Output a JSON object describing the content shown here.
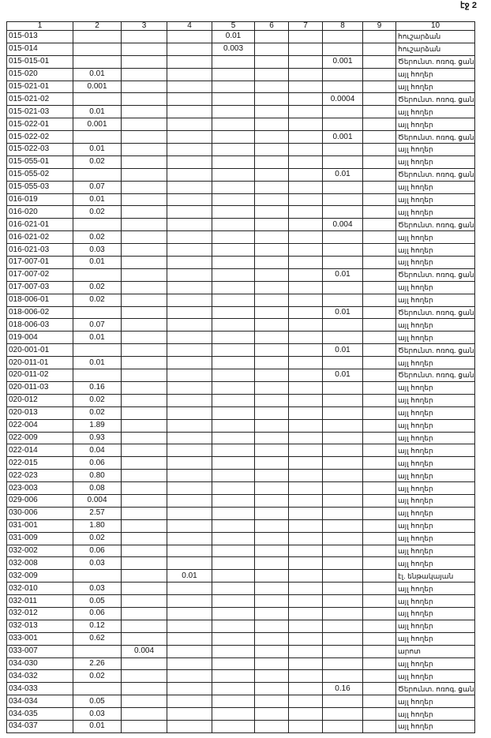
{
  "page": {
    "label": "էջ 2"
  },
  "table": {
    "header": [
      "1",
      "2",
      "3",
      "4",
      "5",
      "6",
      "7",
      "8",
      "9",
      "10"
    ],
    "rows": [
      [
        "015-013",
        null,
        null,
        null,
        "0.01",
        null,
        null,
        null,
        null,
        "հուշարձան"
      ],
      [
        "015-014",
        null,
        null,
        null,
        "0.003",
        null,
        null,
        null,
        null,
        "հուշարձան"
      ],
      [
        "015-015-01",
        null,
        null,
        null,
        null,
        null,
        null,
        "0.001",
        null,
        "Ծերունտ. ոռոգ. ցանք"
      ],
      [
        "015-020",
        "0.01",
        null,
        null,
        null,
        null,
        null,
        null,
        null,
        "այլ հողեր"
      ],
      [
        "015-021-01",
        "0.001",
        null,
        null,
        null,
        null,
        null,
        null,
        null,
        "այլ հողեր"
      ],
      [
        "015-021-02",
        null,
        null,
        null,
        null,
        null,
        null,
        "0.0004",
        null,
        "Ծերունտ. ոռոգ. ցանք"
      ],
      [
        "015-021-03",
        "0.01",
        null,
        null,
        null,
        null,
        null,
        null,
        null,
        "այլ հողեր"
      ],
      [
        "015-022-01",
        "0.001",
        null,
        null,
        null,
        null,
        null,
        null,
        null,
        "այլ հողեր"
      ],
      [
        "015-022-02",
        null,
        null,
        null,
        null,
        null,
        null,
        "0.001",
        null,
        "Ծերունտ. ոռոգ. ցանք"
      ],
      [
        "015-022-03",
        "0.01",
        null,
        null,
        null,
        null,
        null,
        null,
        null,
        "այլ հողեր"
      ],
      [
        "015-055-01",
        "0.02",
        null,
        null,
        null,
        null,
        null,
        null,
        null,
        "այլ հողեր"
      ],
      [
        "015-055-02",
        null,
        null,
        null,
        null,
        null,
        null,
        "0.01",
        null,
        "Ծերունտ. ոռոգ. ցանք"
      ],
      [
        "015-055-03",
        "0.07",
        null,
        null,
        null,
        null,
        null,
        null,
        null,
        "այլ հողեր"
      ],
      [
        "016-019",
        "0.01",
        null,
        null,
        null,
        null,
        null,
        null,
        null,
        "այլ հողեր"
      ],
      [
        "016-020",
        "0.02",
        null,
        null,
        null,
        null,
        null,
        null,
        null,
        "այլ հողեր"
      ],
      [
        "016-021-01",
        null,
        null,
        null,
        null,
        null,
        null,
        "0.004",
        null,
        "Ծերունտ. ոռոգ. ցանք"
      ],
      [
        "016-021-02",
        "0.02",
        null,
        null,
        null,
        null,
        null,
        null,
        null,
        "այլ հողեր"
      ],
      [
        "016-021-03",
        "0.03",
        null,
        null,
        null,
        null,
        null,
        null,
        null,
        "այլ հողեր"
      ],
      [
        "017-007-01",
        "0.01",
        null,
        null,
        null,
        null,
        null,
        null,
        null,
        "այլ հողեր"
      ],
      [
        "017-007-02",
        null,
        null,
        null,
        null,
        null,
        null,
        "0.01",
        null,
        "Ծերունտ. ոռոգ. ցանք"
      ],
      [
        "017-007-03",
        "0.02",
        null,
        null,
        null,
        null,
        null,
        null,
        null,
        "այլ հողեր"
      ],
      [
        "018-006-01",
        "0.02",
        null,
        null,
        null,
        null,
        null,
        null,
        null,
        "այլ հողեր"
      ],
      [
        "018-006-02",
        null,
        null,
        null,
        null,
        null,
        null,
        "0.01",
        null,
        "Ծերունտ. ոռոգ. ցանք"
      ],
      [
        "018-006-03",
        "0.07",
        null,
        null,
        null,
        null,
        null,
        null,
        null,
        "այլ հողեր"
      ],
      [
        "019-004",
        "0.01",
        null,
        null,
        null,
        null,
        null,
        null,
        null,
        "այլ հողեր"
      ],
      [
        "020-001-01",
        null,
        null,
        null,
        null,
        null,
        null,
        "0.01",
        null,
        "Ծերունտ. ոռոգ. ցանք"
      ],
      [
        "020-011-01",
        "0.01",
        null,
        null,
        null,
        null,
        null,
        null,
        null,
        "այլ հողեր"
      ],
      [
        "020-011-02",
        null,
        null,
        null,
        null,
        null,
        null,
        "0.01",
        null,
        "Ծերունտ. ոռոգ. ցանք"
      ],
      [
        "020-011-03",
        "0.16",
        null,
        null,
        null,
        null,
        null,
        null,
        null,
        "այլ հողեր"
      ],
      [
        "020-012",
        "0.02",
        null,
        null,
        null,
        null,
        null,
        null,
        null,
        "այլ հողեր"
      ],
      [
        "020-013",
        "0.02",
        null,
        null,
        null,
        null,
        null,
        null,
        null,
        "այլ հողեր"
      ],
      [
        "022-004",
        "1.89",
        null,
        null,
        null,
        null,
        null,
        null,
        null,
        "այլ հողեր"
      ],
      [
        "022-009",
        "0.93",
        null,
        null,
        null,
        null,
        null,
        null,
        null,
        "այլ հողեր"
      ],
      [
        "022-014",
        "0.04",
        null,
        null,
        null,
        null,
        null,
        null,
        null,
        "այլ հողեր"
      ],
      [
        "022-015",
        "0.06",
        null,
        null,
        null,
        null,
        null,
        null,
        null,
        "այլ հողեր"
      ],
      [
        "022-023",
        "0.80",
        null,
        null,
        null,
        null,
        null,
        null,
        null,
        "այլ հողեր"
      ],
      [
        "023-003",
        "0.08",
        null,
        null,
        null,
        null,
        null,
        null,
        null,
        "այլ հողեր"
      ],
      [
        "029-006",
        "0.004",
        null,
        null,
        null,
        null,
        null,
        null,
        null,
        "այլ հողեր"
      ],
      [
        "030-006",
        "2.57",
        null,
        null,
        null,
        null,
        null,
        null,
        null,
        "այլ հողեր"
      ],
      [
        "031-001",
        "1.80",
        null,
        null,
        null,
        null,
        null,
        null,
        null,
        "այլ հողեր"
      ],
      [
        "031-009",
        "0.02",
        null,
        null,
        null,
        null,
        null,
        null,
        null,
        "այլ հողեր"
      ],
      [
        "032-002",
        "0.06",
        null,
        null,
        null,
        null,
        null,
        null,
        null,
        "այլ հողեր"
      ],
      [
        "032-008",
        "0.03",
        null,
        null,
        null,
        null,
        null,
        null,
        null,
        "այլ հողեր"
      ],
      [
        "032-009",
        null,
        null,
        "0.01",
        null,
        null,
        null,
        null,
        null,
        "էլ. ենթակայան"
      ],
      [
        "032-010",
        "0.03",
        null,
        null,
        null,
        null,
        null,
        null,
        null,
        "այլ հողեր"
      ],
      [
        "032-011",
        "0.05",
        null,
        null,
        null,
        null,
        null,
        null,
        null,
        "այլ հողեր"
      ],
      [
        "032-012",
        "0.06",
        null,
        null,
        null,
        null,
        null,
        null,
        null,
        "այլ հողեր"
      ],
      [
        "032-013",
        "0.12",
        null,
        null,
        null,
        null,
        null,
        null,
        null,
        "այլ հողեր"
      ],
      [
        "033-001",
        "0.62",
        null,
        null,
        null,
        null,
        null,
        null,
        null,
        "այլ հողեր"
      ],
      [
        "033-007",
        null,
        "0.004",
        null,
        null,
        null,
        null,
        null,
        null,
        "արոտ"
      ],
      [
        "034-030",
        "2.26",
        null,
        null,
        null,
        null,
        null,
        null,
        null,
        "այլ հողեր"
      ],
      [
        "034-032",
        "0.02",
        null,
        null,
        null,
        null,
        null,
        null,
        null,
        "այլ հողեր"
      ],
      [
        "034-033",
        null,
        null,
        null,
        null,
        null,
        null,
        "0.16",
        null,
        "Ծերունտ. ոռոգ. ցանք"
      ],
      [
        "034-034",
        "0.05",
        null,
        null,
        null,
        null,
        null,
        null,
        null,
        "այլ հողեր"
      ],
      [
        "034-035",
        "0.03",
        null,
        null,
        null,
        null,
        null,
        null,
        null,
        "այլ հողեր"
      ],
      [
        "034-037",
        "0.01",
        null,
        null,
        null,
        null,
        null,
        null,
        null,
        "այլ հողեր"
      ]
    ]
  }
}
